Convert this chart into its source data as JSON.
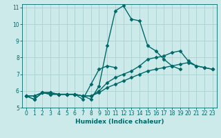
{
  "xlabel": "Humidex (Indice chaleur)",
  "bg_color": "#cceaea",
  "grid_color": "#aad0d0",
  "line_color": "#006868",
  "xlim": [
    -0.5,
    23.5
  ],
  "ylim": [
    5,
    11.2
  ],
  "yticks": [
    5,
    6,
    7,
    8,
    9,
    10,
    11
  ],
  "xticks": [
    0,
    1,
    2,
    3,
    4,
    5,
    6,
    7,
    8,
    9,
    10,
    11,
    12,
    13,
    14,
    15,
    16,
    17,
    18,
    19,
    20,
    21,
    22,
    23
  ],
  "series": [
    [
      5.7,
      5.5,
      5.9,
      5.8,
      5.8,
      5.8,
      5.8,
      5.7,
      5.5,
      6.3,
      8.7,
      10.8,
      11.1,
      10.3,
      10.2,
      8.7,
      8.4,
      7.9,
      7.5,
      7.3,
      null,
      null,
      null,
      null
    ],
    [
      5.7,
      5.5,
      5.9,
      5.8,
      5.8,
      5.8,
      5.8,
      5.5,
      6.4,
      7.3,
      7.5,
      7.4,
      null,
      null,
      null,
      null,
      null,
      null,
      null,
      null,
      null,
      null,
      null,
      null
    ],
    [
      5.7,
      5.7,
      5.9,
      5.9,
      5.8,
      5.8,
      5.8,
      5.7,
      5.7,
      6.0,
      6.5,
      6.8,
      7.0,
      7.2,
      7.5,
      7.9,
      8.0,
      8.1,
      8.3,
      8.4,
      7.8,
      7.5,
      7.4,
      7.3
    ],
    [
      5.7,
      5.7,
      5.9,
      5.9,
      5.8,
      5.8,
      5.8,
      5.7,
      5.7,
      5.9,
      6.2,
      6.4,
      6.6,
      6.8,
      7.0,
      7.2,
      7.3,
      7.4,
      7.5,
      7.6,
      7.7,
      7.5,
      7.4,
      7.3
    ]
  ],
  "marker": "D",
  "markersize": 2.5,
  "linewidth": 1.0
}
